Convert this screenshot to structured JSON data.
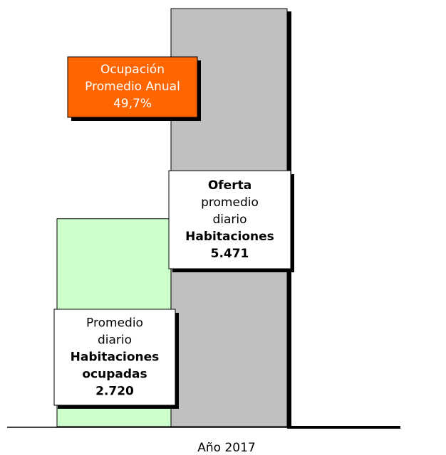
{
  "chart_data": {
    "type": "bar",
    "categories": [
      "Año 2017"
    ],
    "ylim": [
      0,
      5500
    ],
    "series": [
      {
        "name_lines": [
          {
            "text": "Promedio",
            "bold": false
          },
          {
            "text": "diario",
            "bold": false
          },
          {
            "text": "Habitaciones",
            "bold": true
          },
          {
            "text": "ocupadas",
            "bold": true
          }
        ],
        "color": "#ccffcc",
        "values": [
          2720
        ],
        "value_labels": [
          "2.720"
        ]
      },
      {
        "name_lines": [
          {
            "text": "Oferta",
            "bold": true
          },
          {
            "text": "promedio",
            "bold": false
          },
          {
            "text": "diario",
            "bold": false
          },
          {
            "text": "Habitaciones",
            "bold": true
          }
        ],
        "color": "#c0c0c0",
        "values": [
          5471
        ],
        "value_labels": [
          "5.471"
        ]
      }
    ],
    "annotation": {
      "lines": [
        "Ocupación",
        "Promedio Anual"
      ],
      "value": 49.7,
      "value_label": "49,7%",
      "color": "#ff6600"
    }
  }
}
